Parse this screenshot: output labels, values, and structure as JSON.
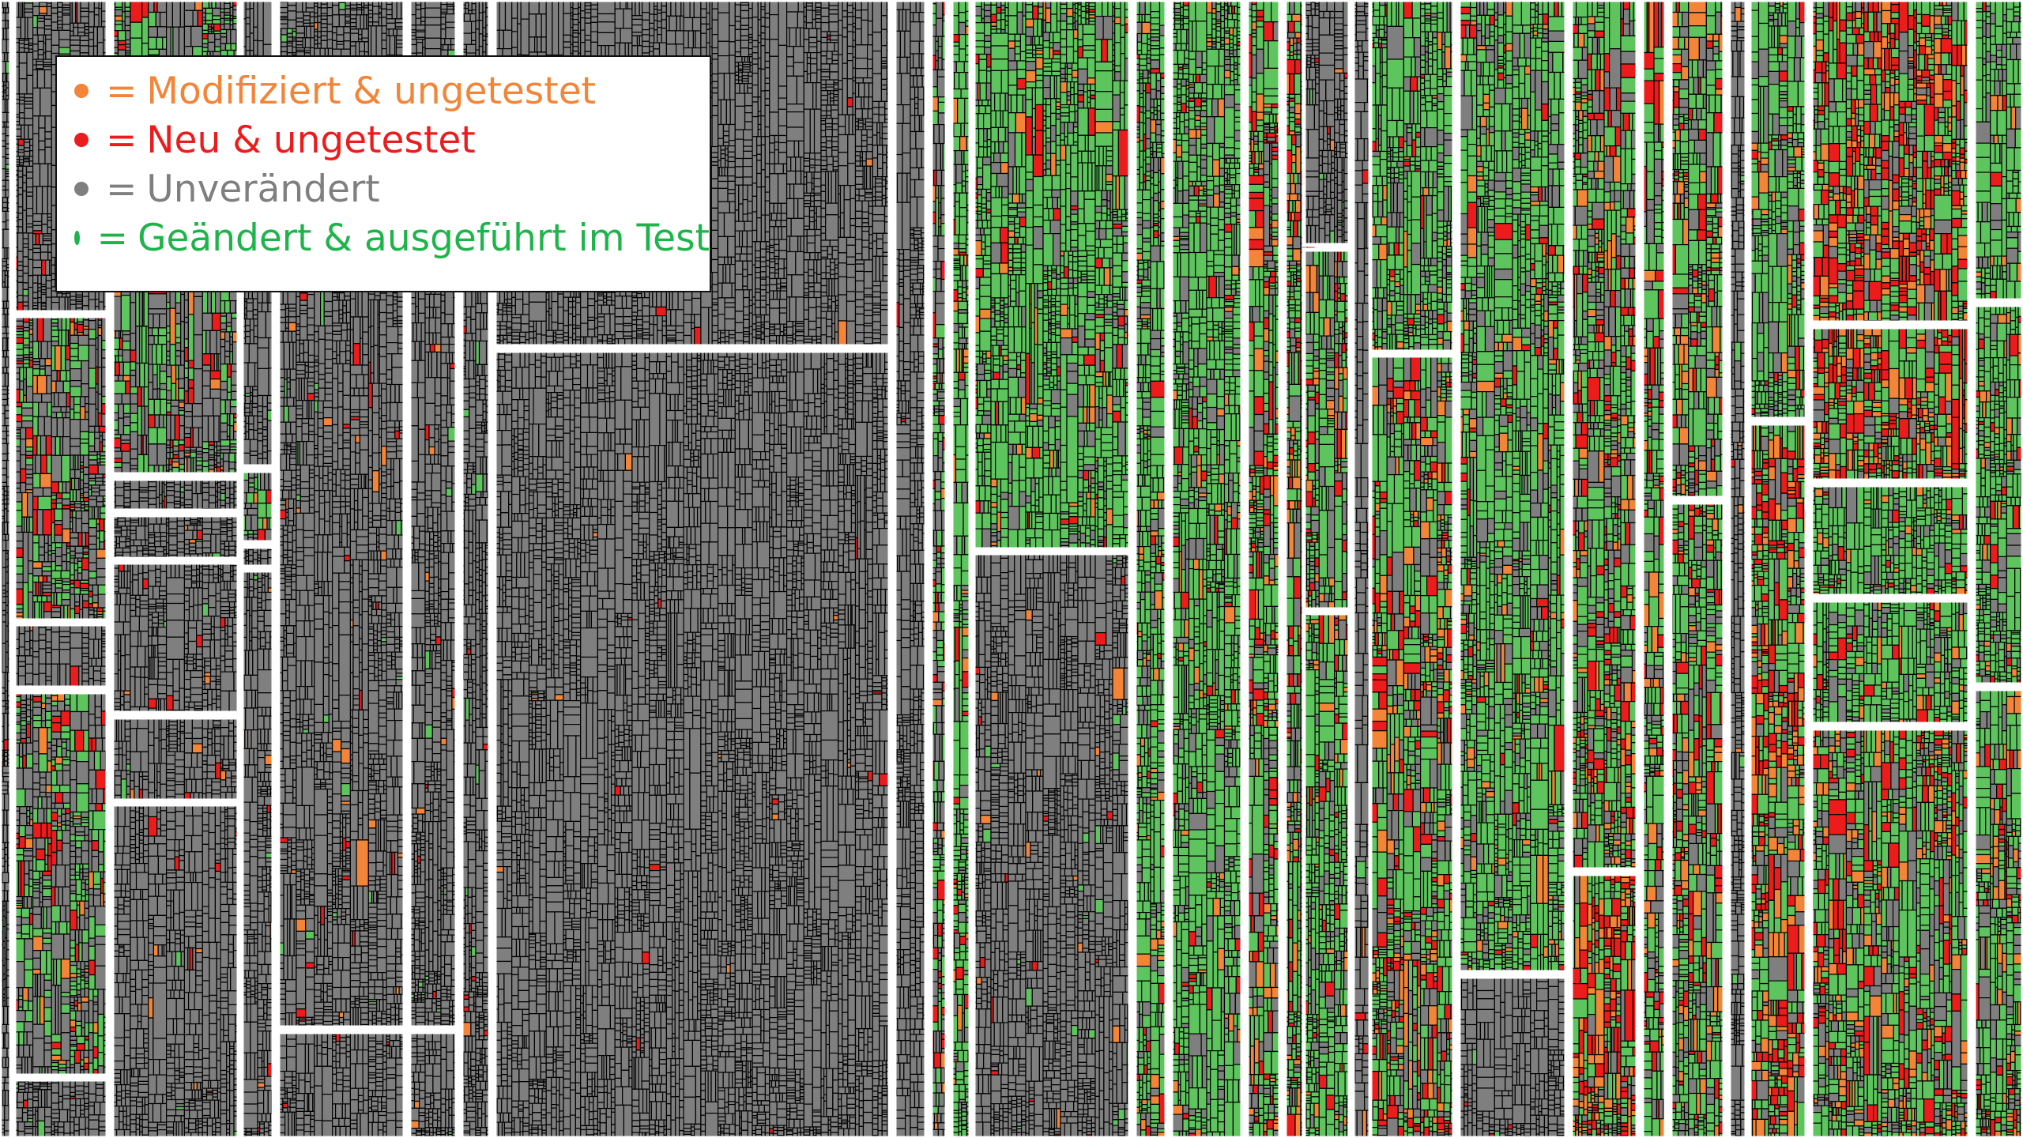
{
  "legend": {
    "items": [
      {
        "key": "modified_untested",
        "label": "Modifiziert & ungetestet",
        "color": "#f28538"
      },
      {
        "key": "new_untested",
        "label": "Neu & ungetestet",
        "color": "#ec1c1c"
      },
      {
        "key": "unchanged",
        "label": "Unverändert",
        "color": "#7f7f7f"
      },
      {
        "key": "changed_tested",
        "label": "Geändert & ausgeführt im Test",
        "color": "#1fb44b"
      }
    ],
    "equals_sign": "="
  },
  "colors": {
    "background": "#ffffff",
    "cell_border": "#000000",
    "group_border": "#ffffff",
    "unchanged_fill": "#7f7f7f",
    "tested_fill": "#5ec45e",
    "modified_fill": "#f28538",
    "new_fill": "#ec1c1c"
  },
  "treemap": {
    "regions": [
      {
        "name": "region-left-gray",
        "mix": {
          "unchanged": 0.97,
          "tested": 0.01,
          "modified": 0.01,
          "new": 0.01
        }
      },
      {
        "name": "region-left-mixed",
        "mix": {
          "unchanged": 0.55,
          "tested": 0.3,
          "modified": 0.05,
          "new": 0.1
        }
      },
      {
        "name": "region-center-gray",
        "mix": {
          "unchanged": 0.995,
          "tested": 0.0,
          "modified": 0.003,
          "new": 0.002
        }
      },
      {
        "name": "region-right-green",
        "mix": {
          "unchanged": 0.2,
          "tested": 0.7,
          "modified": 0.06,
          "new": 0.04
        }
      },
      {
        "name": "region-right-mixed",
        "mix": {
          "unchanged": 0.25,
          "tested": 0.5,
          "modified": 0.12,
          "new": 0.13
        }
      },
      {
        "name": "region-far-right-red",
        "mix": {
          "unchanged": 0.15,
          "tested": 0.4,
          "modified": 0.2,
          "new": 0.25
        }
      }
    ]
  }
}
